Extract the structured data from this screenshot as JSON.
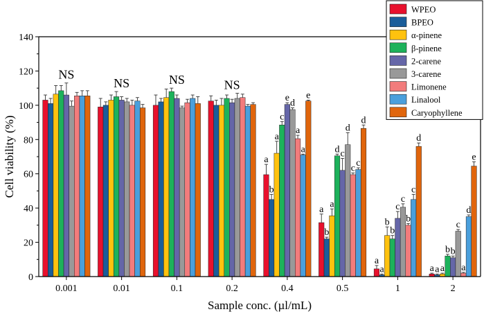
{
  "chart_data": {
    "type": "bar",
    "xlabel": "Sample conc. (µl/mL)",
    "ylabel": "Cell viability (%)",
    "ylim": [
      0,
      140
    ],
    "yticks": [
      0,
      20,
      40,
      60,
      80,
      100,
      120,
      140
    ],
    "grid": false,
    "legend_position": "top-right",
    "categories": [
      "0.001",
      "0.01",
      "0.1",
      "0.2",
      "0.4",
      "0.5",
      "1",
      "2"
    ],
    "group_labels": [
      "NS",
      "NS",
      "NS",
      "NS",
      "",
      "",
      "",
      ""
    ],
    "series": [
      {
        "name": "WPEO",
        "color": "#e8112d",
        "values": [
          103,
          99,
          100,
          102.5,
          59.5,
          31.5,
          4.5,
          1.5
        ],
        "errors": [
          3,
          5,
          6,
          3,
          6,
          5,
          2,
          0.5
        ],
        "labels": [
          "",
          "",
          "",
          "",
          "a",
          "a",
          "a",
          "a"
        ]
      },
      {
        "name": "BPEO",
        "color": "#1a5d9a",
        "values": [
          101,
          100,
          102,
          100,
          45,
          22,
          1,
          1
        ],
        "errors": [
          3,
          2,
          2,
          3,
          3,
          1,
          0.5,
          0.5
        ],
        "labels": [
          "",
          "",
          "",
          "",
          "b",
          "b",
          "a",
          "a"
        ]
      },
      {
        "name": "α-pinene",
        "color": "#ffc20e",
        "values": [
          106.5,
          103,
          104.5,
          100,
          72,
          35.5,
          24,
          1.5
        ],
        "errors": [
          5,
          3,
          5,
          4,
          7,
          4,
          5,
          0.5
        ],
        "labels": [
          "",
          "",
          "",
          "",
          "a",
          "a",
          "b",
          "a"
        ]
      },
      {
        "name": "β-pinene",
        "color": "#1db25b",
        "values": [
          108.5,
          105,
          108,
          104,
          88.5,
          70.5,
          22,
          12
        ],
        "errors": [
          3,
          3,
          2,
          2,
          2,
          1,
          2,
          1
        ],
        "labels": [
          "",
          "",
          "",
          "",
          "c",
          "d",
          "b",
          "b"
        ]
      },
      {
        "name": "2-carene",
        "color": "#6566a8",
        "values": [
          106,
          103,
          104,
          101.5,
          100.5,
          62,
          34,
          11
        ],
        "errors": [
          7,
          2,
          2,
          2,
          1,
          7,
          4,
          1
        ],
        "labels": [
          "",
          "",
          "",
          "",
          "e",
          "c",
          "c",
          "b"
        ]
      },
      {
        "name": "3-carene",
        "color": "#999999",
        "values": [
          99.5,
          102,
          98.5,
          104,
          97.5,
          77,
          40.5,
          26.5
        ],
        "errors": [
          3,
          2,
          1,
          3,
          1,
          7,
          2,
          1
        ],
        "labels": [
          "",
          "",
          "",
          "",
          "d",
          "d",
          "c",
          "c"
        ]
      },
      {
        "name": "Limonene",
        "color": "#f27c7c",
        "values": [
          105.5,
          100,
          101.5,
          104.5,
          80.5,
          59.5,
          30,
          2
        ],
        "errors": [
          2,
          3,
          2,
          2,
          2,
          1,
          1,
          0.5
        ],
        "labels": [
          "",
          "",
          "",
          "",
          "a",
          "c",
          "b",
          "a"
        ]
      },
      {
        "name": "Linalool",
        "color": "#4a9fdc",
        "values": [
          105.5,
          102.5,
          104,
          99.5,
          71,
          62.5,
          45,
          35
        ],
        "errors": [
          3,
          2,
          2,
          1,
          0.5,
          1,
          3,
          1
        ],
        "labels": [
          "",
          "",
          "",
          "",
          "a",
          "c",
          "c",
          "d"
        ]
      },
      {
        "name": "Caryophyllene",
        "color": "#e0650c",
        "values": [
          105.5,
          98.5,
          101,
          100.5,
          102.5,
          86.5,
          76,
          64.5
        ],
        "errors": [
          3,
          2,
          4,
          1,
          0.5,
          2,
          2,
          2.5
        ],
        "labels": [
          "",
          "",
          "",
          "",
          "e",
          "d",
          "d",
          "e"
        ]
      }
    ]
  }
}
